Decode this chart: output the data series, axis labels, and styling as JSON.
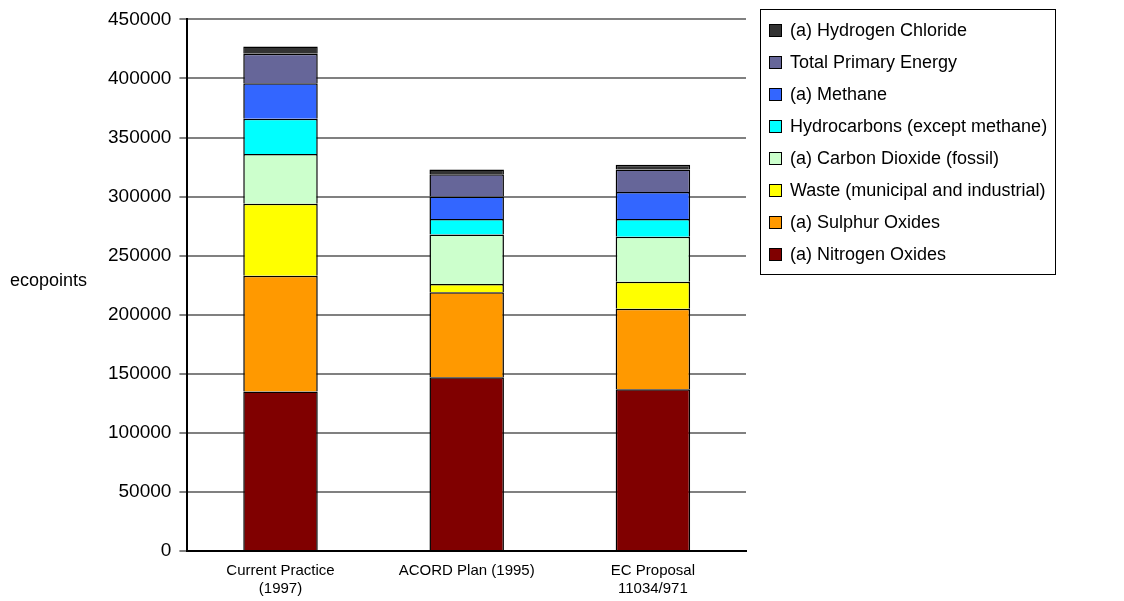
{
  "chart_data": {
    "type": "bar",
    "stacked": true,
    "ylabel": "ecopoints",
    "categories": [
      "Current Practice\n(1997)",
      "ACORD Plan (1995)",
      "EC Proposal\n11034/971"
    ],
    "series": [
      {
        "name": "(a) Nitrogen Oxides",
        "color": "#800000",
        "values": [
          135000,
          147000,
          137000
        ]
      },
      {
        "name": "(a) Sulphur Oxides",
        "color": "#ff9900",
        "values": [
          98000,
          72000,
          68000
        ]
      },
      {
        "name": "Waste (municipal and industrial)",
        "color": "#ffff00",
        "values": [
          61000,
          7000,
          23000
        ]
      },
      {
        "name": "(a) Carbon Dioxide (fossil)",
        "color": "#ccffcc",
        "values": [
          42000,
          42000,
          38000
        ]
      },
      {
        "name": "Hydrocarbons (except methane)",
        "color": "#00ffff",
        "values": [
          30000,
          13000,
          15000
        ]
      },
      {
        "name": "(a) Methane",
        "color": "#3366ff",
        "values": [
          30000,
          19000,
          23000
        ]
      },
      {
        "name": "Total Primary Energy",
        "color": "#666699",
        "values": [
          25000,
          19000,
          19000
        ]
      },
      {
        "name": "(a) Hydrogen Chloride",
        "color": "#333333",
        "values": [
          6000,
          4000,
          4000
        ]
      }
    ],
    "ylim": [
      0,
      450000
    ],
    "yticks": [
      0,
      50000,
      100000,
      150000,
      200000,
      250000,
      300000,
      350000,
      400000,
      450000
    ],
    "grid": "y",
    "legend": "top right"
  }
}
